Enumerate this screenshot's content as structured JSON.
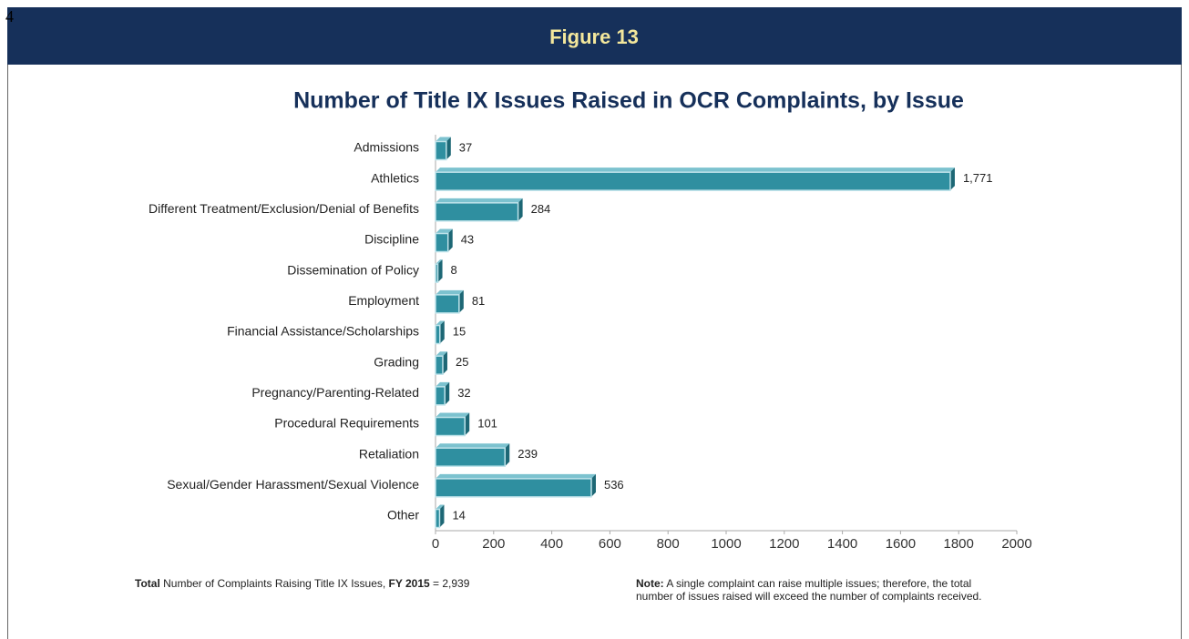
{
  "page_number": "4",
  "figure_label": "Figure 13",
  "chart_data": {
    "type": "bar3d",
    "orientation": "horizontal",
    "title": "Number of Title IX Issues Raised in OCR Complaints, by Issue",
    "categories": [
      "Admissions",
      "Athletics",
      "Different Treatment/Exclusion/Denial of Benefits",
      "Discipline",
      "Dissemination of Policy",
      "Employment",
      "Financial Assistance/Scholarships",
      "Grading",
      "Pregnancy/Parenting-Related",
      "Procedural Requirements",
      "Retaliation",
      "Sexual/Gender Harassment/Sexual Violence",
      "Other"
    ],
    "values": [
      37,
      1771,
      284,
      43,
      8,
      81,
      15,
      25,
      32,
      101,
      239,
      536,
      14
    ],
    "value_labels": [
      "37",
      "1,771",
      "284",
      "43",
      "8",
      "81",
      "15",
      "25",
      "32",
      "101",
      "239",
      "536",
      "14"
    ],
    "color": "#2f8fa0",
    "xlim": [
      0,
      2000
    ],
    "xticks": [
      0,
      200,
      400,
      600,
      800,
      1000,
      1200,
      1400,
      1600,
      1800,
      2000
    ],
    "grid": false
  },
  "footnote": {
    "total_bold": "Total",
    "total_text": " Number of Complaints Raising Title IX Issues, ",
    "year_bold": "FY 2015",
    "total_value": " = 2,939"
  },
  "note": {
    "label": "Note:",
    "lines": [
      " A single complaint can raise multiple issues; therefore, the total",
      "number of issues raised will exceed the number of complaints received."
    ]
  }
}
